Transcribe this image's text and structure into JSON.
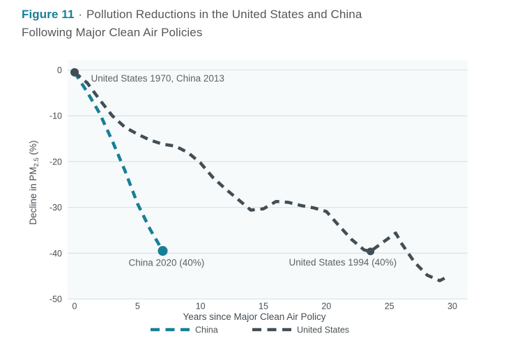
{
  "figure": {
    "label": "Figure 11",
    "separator": "·",
    "title_rest": "Pollution Reductions in the United States and China Following Major Clean Air Policies"
  },
  "chart_data": {
    "type": "line",
    "title": "Figure 11 · Pollution Reductions in the United States and China Following Major Clean Air Policies",
    "xlabel": "Years since Major Clean Air Policy",
    "ylabel": "Decline in PM2.5 (%)",
    "ylabel_parts": {
      "prefix": "Decline in PM",
      "sub": "2.5",
      "suffix": " (%)"
    },
    "xlim": [
      0,
      30
    ],
    "ylim": [
      -50,
      0
    ],
    "xticks": [
      0,
      5,
      10,
      15,
      20,
      25,
      30
    ],
    "yticks": [
      0,
      -10,
      -20,
      -30,
      -40,
      -50
    ],
    "grid": "horizontal-only",
    "line_style": "dashed",
    "legend_position": "bottom-center",
    "series": [
      {
        "name": "China",
        "color": "#177F96",
        "x": [
          0,
          1,
          2,
          3,
          4,
          5,
          6,
          7
        ],
        "y": [
          -0.5,
          -4.8,
          -9.5,
          -15.5,
          -22,
          -29.2,
          -34.8,
          -39.5
        ]
      },
      {
        "name": "United States",
        "color": "#424E56",
        "x": [
          0,
          1,
          2,
          3,
          4,
          5,
          6,
          7,
          8,
          9,
          10,
          11,
          12,
          13,
          14,
          15,
          16,
          17,
          18,
          19,
          20,
          21,
          22,
          23,
          23.5,
          24,
          25,
          25.5,
          26,
          27,
          28,
          29,
          29.5
        ],
        "y": [
          -0.5,
          -2.8,
          -6.5,
          -10,
          -12.5,
          -14,
          -15.3,
          -16.2,
          -16.6,
          -18,
          -20.3,
          -23.5,
          -26,
          -28.3,
          -30.6,
          -30.3,
          -28.7,
          -28.9,
          -29.6,
          -30.1,
          -30.9,
          -34,
          -37,
          -39.3,
          -39.6,
          -38.6,
          -36.6,
          -35.6,
          -38,
          -42,
          -44.8,
          -46,
          -45.3
        ]
      }
    ],
    "markers": [
      {
        "series": "United States",
        "x": 0,
        "y": -0.5,
        "color": "#424E56",
        "r": 6
      },
      {
        "series": "China",
        "x": 7,
        "y": -39.5,
        "color": "#177F96",
        "r": 7
      },
      {
        "series": "United States",
        "x": 23.5,
        "y": -39.6,
        "color": "#424E56",
        "r": 5.5
      }
    ],
    "annotations": [
      {
        "text": "United States 1970, China 2013",
        "x": 1.3,
        "y": -2.5,
        "anchor": "start"
      },
      {
        "text": "China 2020 (40%)",
        "x": 7.3,
        "y": -42.8,
        "anchor": "middle"
      },
      {
        "text": "United States 1994 (40%)",
        "x": 21.3,
        "y": -42.7,
        "anchor": "middle"
      }
    ],
    "legend": [
      {
        "label": "China",
        "color": "#177F96"
      },
      {
        "label": "United States",
        "color": "#424E56"
      }
    ]
  },
  "colors": {
    "accent_teal": "#177F96",
    "us_dark": "#424E56",
    "title_text": "#54585B",
    "gridline": "#D8E5EB",
    "plot_background": "#F7FAFA"
  }
}
